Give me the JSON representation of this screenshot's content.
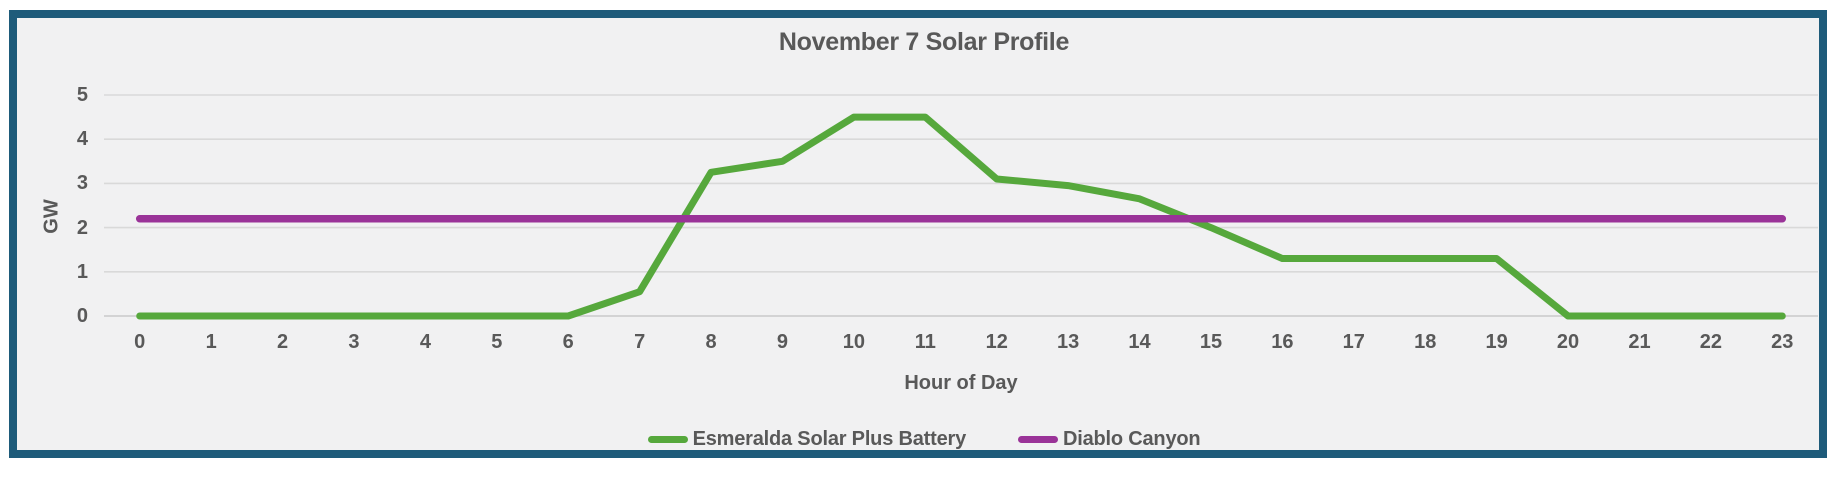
{
  "chart_data": {
    "type": "line",
    "title": "November 7 Solar Profile",
    "xlabel": "Hour of Day",
    "ylabel": "GW",
    "x": [
      0,
      1,
      2,
      3,
      4,
      5,
      6,
      7,
      8,
      9,
      10,
      11,
      12,
      13,
      14,
      15,
      16,
      17,
      18,
      19,
      20,
      21,
      22,
      23
    ],
    "xtick_labels": [
      "0",
      "1",
      "2",
      "3",
      "4",
      "5",
      "6",
      "7",
      "8",
      "9",
      "10",
      "11",
      "12",
      "13",
      "14",
      "15",
      "16",
      "17",
      "18",
      "19",
      "20",
      "21",
      "22",
      "23"
    ],
    "ylim": [
      0,
      5
    ],
    "yticks": [
      0,
      1,
      2,
      3,
      4,
      5
    ],
    "grid": true,
    "legend_position": "bottom",
    "series": [
      {
        "name": "Esmeralda Solar Plus Battery",
        "color": "#56A83C",
        "values": [
          0,
          0,
          0,
          0,
          0,
          0,
          0,
          0.55,
          3.25,
          3.5,
          4.5,
          4.5,
          3.1,
          2.95,
          2.65,
          2.0,
          1.3,
          1.3,
          1.3,
          1.3,
          0,
          0,
          0,
          0
        ]
      },
      {
        "name": "Diablo Canyon",
        "color": "#9A3398",
        "values": [
          2.2,
          2.2,
          2.2,
          2.2,
          2.2,
          2.2,
          2.2,
          2.2,
          2.2,
          2.2,
          2.2,
          2.2,
          2.2,
          2.2,
          2.2,
          2.2,
          2.2,
          2.2,
          2.2,
          2.2,
          2.2,
          2.2,
          2.2,
          2.2
        ]
      }
    ]
  },
  "colors": {
    "frame_border": "#1E5B7A",
    "chart_background": "#F1F1F2",
    "page_background": "#FFFFFF",
    "gridline": "#D9D9D9",
    "axis_line": "#C9C9C9",
    "text": "#595959"
  }
}
